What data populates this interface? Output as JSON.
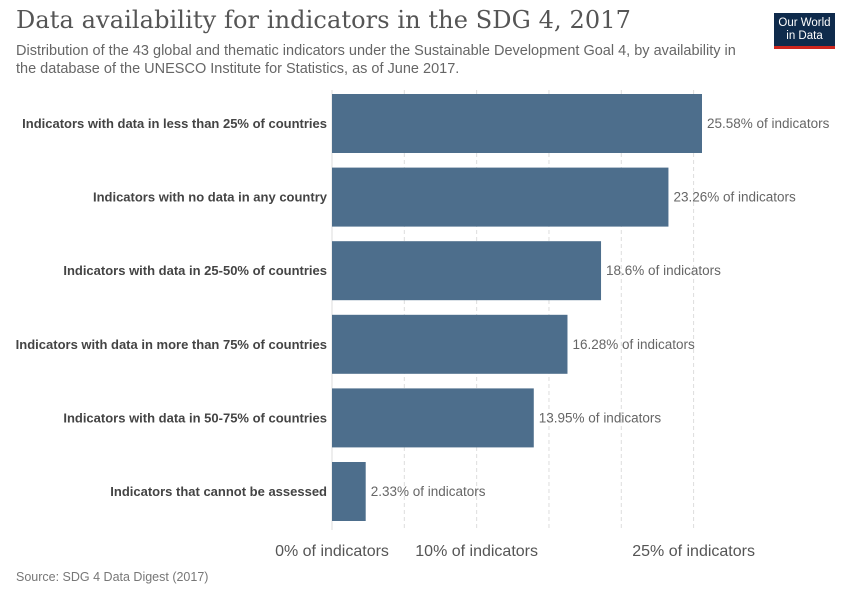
{
  "header": {
    "title": "Data availability for indicators in the SDG 4, 2017",
    "subtitle": "Distribution of the 43 global and thematic indicators under the Sustainable Development Goal 4, by availability in the database of the UNESCO Institute for Statistics, as of June 2017."
  },
  "logo": {
    "line1": "Our World",
    "line2": "in Data"
  },
  "footer": {
    "source": "Source: SDG 4 Data Digest (2017)"
  },
  "colors": {
    "bar": "#4d6e8c",
    "grid": "#dddddd",
    "logo_bg": "#0f2b4c",
    "logo_accent": "#ce261e"
  },
  "chart_data": {
    "type": "bar",
    "orientation": "horizontal",
    "categories": [
      "Indicators with data in less than 25% of countries",
      "Indicators with no data in any country",
      "Indicators with data in 25-50% of countries",
      "Indicators with data in more than 75% of countries",
      "Indicators with data in 50-75% of countries",
      "Indicators that cannot be assessed"
    ],
    "values": [
      25.58,
      23.26,
      18.6,
      16.28,
      13.95,
      2.33
    ],
    "value_labels": [
      "25.58% of indicators",
      "23.26% of indicators",
      "18.6% of indicators",
      "16.28% of indicators",
      "13.95% of indicators",
      "2.33% of indicators"
    ],
    "xlim": [
      0,
      25.58
    ],
    "ticks": [
      {
        "value": 0,
        "label": "0% of indicators"
      },
      {
        "value": 10,
        "label": "10% of indicators"
      },
      {
        "value": 25,
        "label": "25% of indicators"
      }
    ],
    "grid_lines": [
      0,
      5,
      10,
      15,
      20,
      25
    ],
    "grid": true
  }
}
